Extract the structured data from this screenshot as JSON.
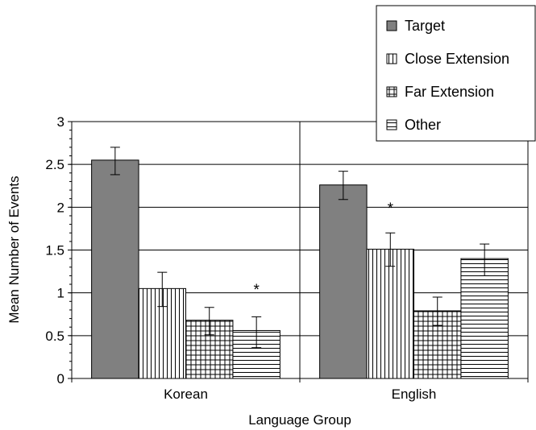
{
  "chart_data": {
    "type": "bar",
    "title": "",
    "xlabel": "Language Group",
    "ylabel": "Mean Number of Events",
    "ylim": [
      0,
      3
    ],
    "yticks": [
      "0",
      "0.5",
      "1",
      "1.5",
      "2",
      "2.5",
      "3"
    ],
    "minor_tick_step": 0.1,
    "grid": true,
    "legend_position": "top-right",
    "categories": [
      "Korean",
      "English"
    ],
    "series": [
      {
        "name": "Target",
        "pattern": "solid",
        "values": [
          2.55,
          2.26
        ],
        "err_low": [
          2.38,
          2.09
        ],
        "err_high": [
          2.7,
          2.42
        ]
      },
      {
        "name": "Close Extension",
        "pattern": "vertical",
        "values": [
          1.05,
          1.51
        ],
        "err_low": [
          0.84,
          1.31
        ],
        "err_high": [
          1.24,
          1.7
        ]
      },
      {
        "name": "Far Extension",
        "pattern": "grid",
        "values": [
          0.68,
          0.79
        ],
        "err_low": [
          0.51,
          0.62
        ],
        "err_high": [
          0.83,
          0.95
        ]
      },
      {
        "name": "Other",
        "pattern": "horizontal",
        "values": [
          0.56,
          1.4
        ],
        "err_low": [
          0.36,
          1.2
        ],
        "err_high": [
          0.72,
          1.57
        ]
      }
    ],
    "annotations": [
      {
        "text": "*",
        "category": 0,
        "series": 3,
        "y": 1.07
      },
      {
        "text": "*",
        "category": 1,
        "series": 1,
        "y": 2.02
      }
    ],
    "colors": {
      "target_fill": "#808080",
      "line": "#000000",
      "background": "#ffffff"
    }
  }
}
